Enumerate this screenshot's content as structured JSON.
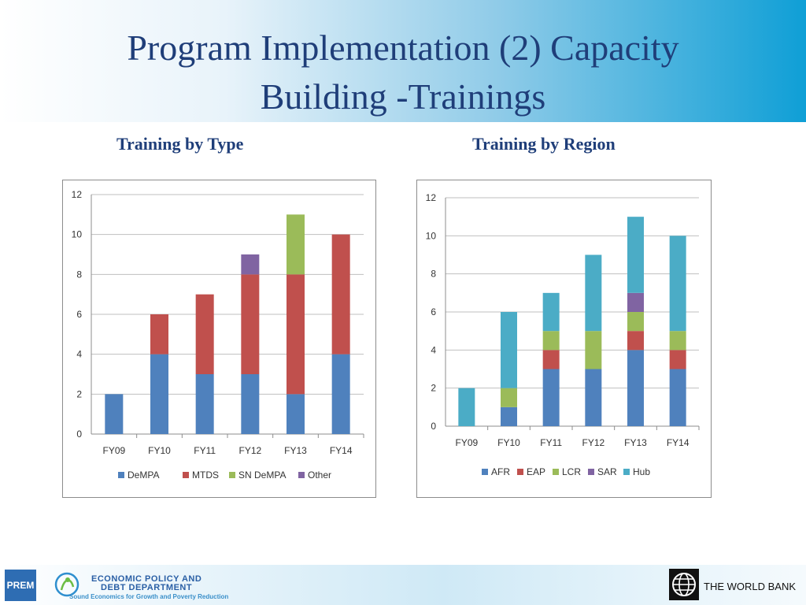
{
  "slide": {
    "title_line1": "Program Implementation (2) Capacity",
    "title_line2": "Building -Trainings"
  },
  "footer": {
    "logo_text": "PREM",
    "dept_line1": "ECONOMIC POLICY AND",
    "dept_line2": "DEBT DEPARTMENT",
    "dept_tagline": "Sound Economics for Growth and Poverty Reduction",
    "world_bank": "THE WORLD BANK",
    "icons": [
      "prem-logo-icon",
      "dept-logo-icon",
      "world-bank-globe-icon"
    ]
  },
  "chart_data": [
    {
      "type": "bar",
      "stacked": true,
      "title": "Training by Type",
      "categories": [
        "FY09",
        "FY10",
        "FY11",
        "FY12",
        "FY13",
        "FY14"
      ],
      "series": [
        {
          "name": "DeMPA",
          "color": "#4f81bd",
          "values": [
            2,
            4,
            3,
            3,
            2,
            4
          ]
        },
        {
          "name": "MTDS",
          "color": "#c0504d",
          "values": [
            0,
            2,
            4,
            5,
            6,
            6
          ]
        },
        {
          "name": "SN DeMPA",
          "color": "#9bbb59",
          "values": [
            0,
            0,
            0,
            0,
            3,
            0
          ]
        },
        {
          "name": "Other",
          "color": "#8064a2",
          "values": [
            0,
            0,
            0,
            1,
            0,
            0
          ]
        }
      ],
      "ylim": [
        0,
        12
      ],
      "yticks": [
        0,
        2,
        4,
        6,
        8,
        10,
        12
      ],
      "grid": true,
      "legend": "bottom"
    },
    {
      "type": "bar",
      "stacked": true,
      "title": "Training by Region",
      "categories": [
        "FY09",
        "FY10",
        "FY11",
        "FY12",
        "FY13",
        "FY14"
      ],
      "series": [
        {
          "name": "AFR",
          "color": "#4f81bd",
          "values": [
            0,
            1,
            3,
            3,
            4,
            3
          ]
        },
        {
          "name": "EAP",
          "color": "#c0504d",
          "values": [
            0,
            0,
            1,
            0,
            1,
            1
          ]
        },
        {
          "name": "LCR",
          "color": "#9bbb59",
          "values": [
            0,
            1,
            1,
            2,
            1,
            1
          ]
        },
        {
          "name": "SAR",
          "color": "#8064a2",
          "values": [
            0,
            0,
            0,
            0,
            1,
            0
          ]
        },
        {
          "name": "Hub",
          "color": "#4bacc6",
          "values": [
            2,
            4,
            2,
            4,
            4,
            5
          ]
        }
      ],
      "ylim": [
        0,
        12
      ],
      "yticks": [
        0,
        2,
        4,
        6,
        8,
        10,
        12
      ],
      "grid": true,
      "legend": "bottom"
    }
  ]
}
